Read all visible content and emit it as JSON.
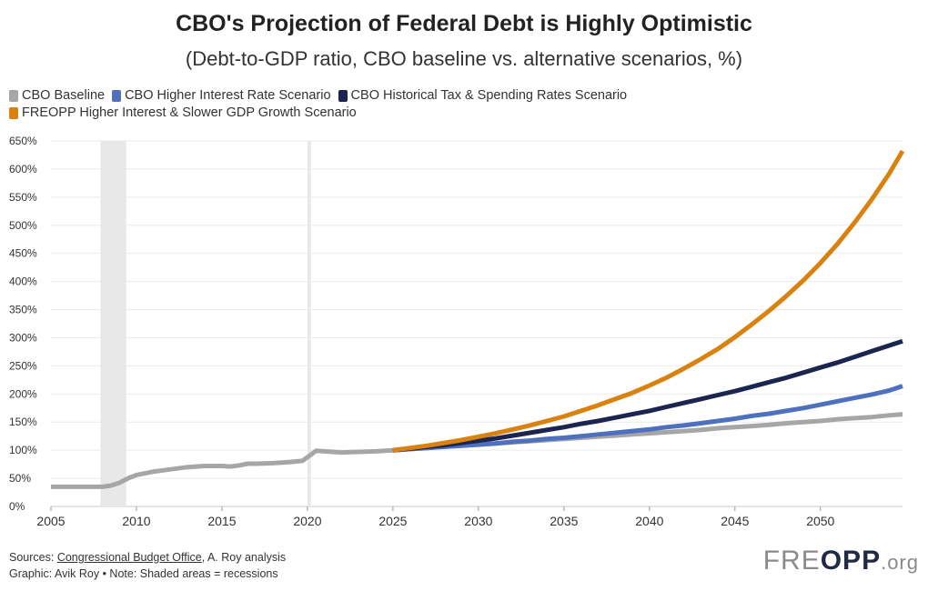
{
  "chart_data": {
    "type": "line",
    "title": "CBO's Projection of Federal Debt is Highly Optimistic",
    "subtitle": "(Debt-to-GDP ratio, CBO baseline vs. alternative scenarios, %)",
    "xlabel": "",
    "ylabel": "",
    "xlim": [
      2005,
      2054.8
    ],
    "ylim": [
      0,
      650
    ],
    "x_ticks": [
      2005,
      2010,
      2015,
      2020,
      2025,
      2030,
      2035,
      2040,
      2045,
      2050
    ],
    "y_ticks": [
      0,
      50,
      100,
      150,
      200,
      250,
      300,
      350,
      400,
      450,
      500,
      550,
      600,
      650
    ],
    "y_tick_suffix": "%",
    "recession_bands": [
      [
        2007.9,
        2009.4
      ],
      [
        2020.0,
        2020.2
      ]
    ],
    "series": [
      {
        "name": "CBO Baseline",
        "color": "#a6a6a6",
        "x": [
          2005,
          2006,
          2007,
          2008,
          2008.5,
          2009,
          2009.5,
          2010,
          2011,
          2012,
          2013,
          2014,
          2015,
          2015.5,
          2016,
          2016.5,
          2017,
          2018,
          2019,
          2019.7,
          2020.2,
          2020.5,
          2021,
          2022,
          2023,
          2024,
          2025,
          2026,
          2027,
          2028,
          2029,
          2030,
          2031,
          2032,
          2033,
          2034,
          2035,
          2036,
          2037,
          2038,
          2039,
          2040,
          2041,
          2042,
          2043,
          2044,
          2045,
          2046,
          2047,
          2048,
          2049,
          2050,
          2051,
          2052,
          2053,
          2054,
          2054.8
        ],
        "values": [
          35,
          35,
          35,
          35,
          37,
          42,
          50,
          56,
          62,
          66,
          70,
          72,
          72,
          71,
          73,
          76,
          76,
          77,
          79,
          81,
          92,
          99,
          98,
          96,
          97,
          98,
          100,
          102,
          104,
          106,
          108,
          110,
          112,
          114,
          116,
          118,
          120,
          122,
          124,
          126,
          128,
          130,
          132,
          134,
          136,
          139,
          141,
          143,
          145,
          148,
          150,
          152,
          155,
          157,
          159,
          162,
          164
        ]
      },
      {
        "name": "CBO Higher Interest Rate Scenario",
        "color": "#4f6fbf",
        "x": [
          2025,
          2026,
          2027,
          2028,
          2029,
          2030,
          2031,
          2032,
          2033,
          2034,
          2035,
          2036,
          2037,
          2038,
          2039,
          2040,
          2041,
          2042,
          2043,
          2044,
          2045,
          2046,
          2047,
          2048,
          2049,
          2050,
          2051,
          2052,
          2053,
          2054,
          2054.8
        ],
        "values": [
          100,
          102,
          104,
          106,
          108,
          110,
          112,
          115,
          117,
          120,
          122,
          125,
          128,
          131,
          134,
          137,
          141,
          144,
          148,
          152,
          156,
          161,
          165,
          170,
          175,
          181,
          187,
          193,
          199,
          206,
          214
        ]
      },
      {
        "name": "CBO Historical Tax & Spending Rates Scenario",
        "color": "#1b2550",
        "x": [
          2025,
          2026,
          2027,
          2028,
          2029,
          2030,
          2031,
          2032,
          2033,
          2034,
          2035,
          2036,
          2037,
          2038,
          2039,
          2040,
          2041,
          2042,
          2043,
          2044,
          2045,
          2046,
          2047,
          2048,
          2049,
          2050,
          2051,
          2052,
          2053,
          2054,
          2054.8
        ],
        "values": [
          100,
          103,
          106,
          109,
          113,
          117,
          121,
          126,
          131,
          136,
          141,
          147,
          152,
          158,
          164,
          170,
          177,
          184,
          191,
          198,
          205,
          213,
          221,
          229,
          238,
          247,
          256,
          266,
          276,
          286,
          294
        ]
      },
      {
        "name": "FREOPP Higher Interest & Slower GDP Growth Scenario",
        "color": "#d9820f",
        "x": [
          2025,
          2026,
          2027,
          2028,
          2029,
          2030,
          2031,
          2032,
          2033,
          2034,
          2035,
          2036,
          2037,
          2038,
          2039,
          2040,
          2041,
          2042,
          2043,
          2044,
          2045,
          2046,
          2047,
          2048,
          2049,
          2050,
          2051,
          2052,
          2053,
          2054,
          2054.8
        ],
        "values": [
          100,
          104,
          108,
          113,
          118,
          124,
          130,
          137,
          144,
          152,
          160,
          170,
          180,
          191,
          202,
          215,
          229,
          245,
          262,
          280,
          301,
          324,
          348,
          374,
          402,
          433,
          467,
          505,
          546,
          591,
          632
        ]
      }
    ]
  },
  "footer": {
    "sources_prefix": "Sources: ",
    "sources_link": "Congressional Budget Office",
    "sources_suffix": ", A. Roy analysis",
    "graphic_note": "Graphic: Avik Roy • Note: Shaded areas = recessions"
  },
  "logo": {
    "part1": "FRE",
    "part2": "OPP",
    "part3": ".org"
  }
}
